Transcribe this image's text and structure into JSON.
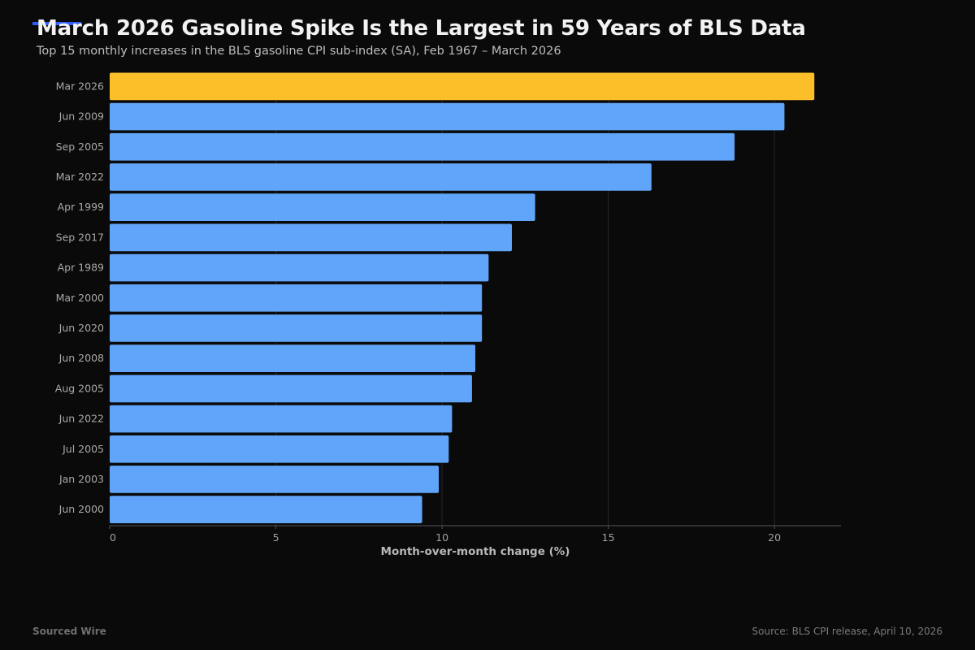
{
  "header": {
    "title": "March 2026 Gasoline Spike Is the Largest in 59 Years of BLS Data",
    "subtitle": "Top 15 monthly increases in the BLS gasoline CPI sub-index (SA), Feb 1967 – March 2026"
  },
  "footer": {
    "brand": "Sourced Wire",
    "source": "Source: BLS CPI release, April 10, 2026"
  },
  "colors": {
    "highlight": "#fcbf2a",
    "bar": "#60a5fa",
    "background": "#0a0a0a",
    "accent": "#2f5bff"
  },
  "chart_data": {
    "type": "bar",
    "orientation": "horizontal",
    "categories": [
      "Mar 2026",
      "Jun 2009",
      "Sep 2005",
      "Mar 2022",
      "Apr 1999",
      "Sep 2017",
      "Apr 1989",
      "Mar 2000",
      "Jun 2020",
      "Jun 2008",
      "Aug 2005",
      "Jun 2022",
      "Jul 2005",
      "Jan 2003",
      "Jun 2000"
    ],
    "values": [
      21.2,
      20.3,
      18.8,
      16.3,
      12.8,
      12.1,
      11.4,
      11.2,
      11.2,
      11.0,
      10.9,
      10.3,
      10.2,
      9.9,
      9.4
    ],
    "highlight_index": 0,
    "xlabel": "Month-over-month change (%)",
    "ylabel": "",
    "xlim": [
      0,
      22
    ],
    "xticks": [
      0,
      5,
      10,
      15,
      20
    ],
    "grid": "vertical"
  }
}
